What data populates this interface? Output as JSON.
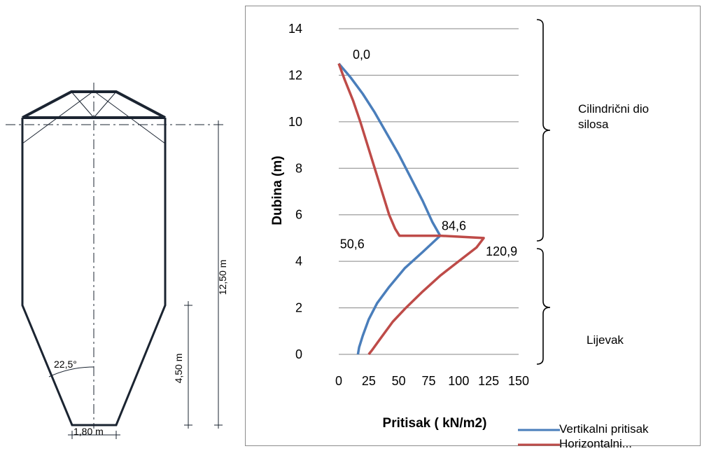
{
  "drawing": {
    "dim_total": "12,50 m",
    "dim_hopper": "4,50 m",
    "dim_angle": "22,5°",
    "dim_outlet": "1,80 m"
  },
  "chart_data": {
    "type": "line",
    "title": "",
    "xlabel": "Pritisak ( kN/m2)",
    "ylabel": "Dubina (m)",
    "xlim": [
      0,
      150
    ],
    "ylim": [
      0,
      14
    ],
    "x_ticks": [
      "0",
      "25",
      "50",
      "75",
      "100",
      "125",
      "150"
    ],
    "y_ticks": [
      "0",
      "2",
      "4",
      "6",
      "8",
      "10",
      "12",
      "14"
    ],
    "grid": "horizontal",
    "legend": "bottom-right",
    "series": [
      {
        "name": "Vertikalni pritisak",
        "color": "#4a7ebb",
        "points": [
          [
            0,
            12.5
          ],
          [
            10,
            11.9
          ],
          [
            20,
            11.2
          ],
          [
            30,
            10.4
          ],
          [
            40,
            9.5
          ],
          [
            50,
            8.6
          ],
          [
            60,
            7.6
          ],
          [
            70,
            6.6
          ],
          [
            78,
            5.7
          ],
          [
            84.6,
            5.1
          ],
          [
            70,
            4.4
          ],
          [
            55,
            3.7
          ],
          [
            42,
            2.9
          ],
          [
            32,
            2.2
          ],
          [
            25,
            1.5
          ],
          [
            20,
            0.8
          ],
          [
            17,
            0.3
          ],
          [
            16,
            0
          ]
        ]
      },
      {
        "name": "Horizontalni...",
        "color": "#be4b48",
        "points": [
          [
            0,
            12.5
          ],
          [
            5,
            11.8
          ],
          [
            12,
            10.9
          ],
          [
            18,
            10.0
          ],
          [
            24,
            9.0
          ],
          [
            30,
            8.0
          ],
          [
            36,
            7.0
          ],
          [
            42,
            6.0
          ],
          [
            47,
            5.4
          ],
          [
            50.6,
            5.1
          ],
          [
            84.6,
            5.1
          ],
          [
            120.9,
            5.0
          ],
          [
            115,
            4.6
          ],
          [
            100,
            4.0
          ],
          [
            85,
            3.4
          ],
          [
            70,
            2.7
          ],
          [
            56,
            2.0
          ],
          [
            45,
            1.4
          ],
          [
            35,
            0.7
          ],
          [
            28,
            0.2
          ],
          [
            25,
            0
          ]
        ]
      }
    ],
    "annotations": [
      {
        "text": "0,0",
        "x": 0,
        "y": 12.5
      },
      {
        "text": "84,6",
        "x": 84.6,
        "y": 5.1
      },
      {
        "text": "50,6",
        "x": 50.6,
        "y": 5.1
      },
      {
        "text": "120,9",
        "x": 120.9,
        "y": 5.0
      }
    ]
  },
  "brackets": {
    "upper_label": "Cilindrični dio silosa",
    "lower_label": "Lijevak"
  }
}
